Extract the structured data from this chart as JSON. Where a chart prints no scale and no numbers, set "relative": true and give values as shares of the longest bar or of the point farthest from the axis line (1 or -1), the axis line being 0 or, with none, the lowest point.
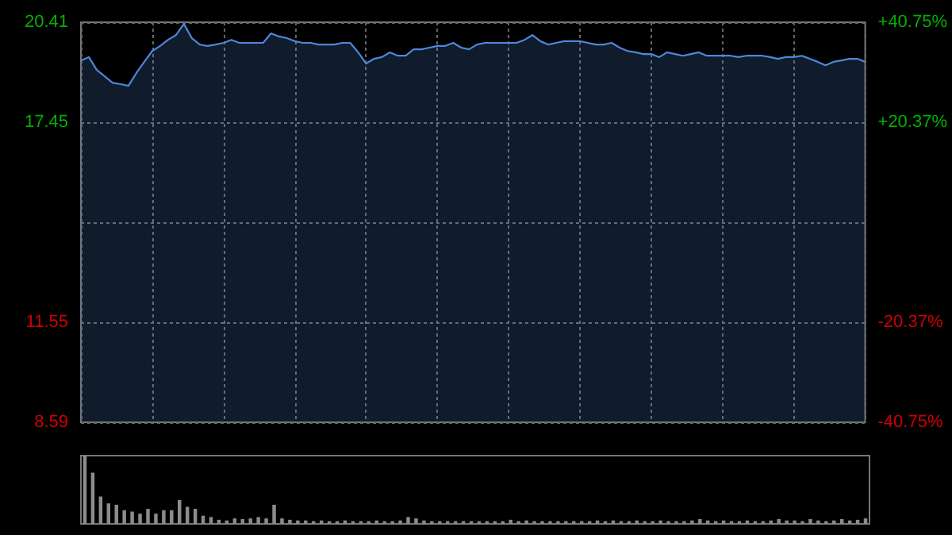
{
  "chart_data": [
    {
      "type": "area",
      "categories": [
        null,
        null,
        null,
        null,
        null,
        null,
        null,
        null,
        null,
        null,
        null,
        null,
        null,
        null,
        null,
        null,
        null,
        null,
        null,
        null,
        null,
        null,
        null,
        null,
        null,
        null,
        null,
        null,
        null,
        null,
        null,
        null,
        null,
        null,
        null,
        null,
        null,
        null,
        null,
        null,
        null,
        null,
        null,
        null,
        null,
        null,
        null,
        null,
        null,
        null,
        null,
        null,
        null,
        null,
        null,
        null,
        null,
        null,
        null,
        null,
        null,
        null,
        null,
        null,
        null,
        null,
        null,
        null,
        null,
        null,
        null,
        null,
        null,
        null,
        null,
        null,
        null,
        null,
        null,
        null,
        null,
        null,
        null,
        null,
        null,
        null,
        null,
        null,
        null,
        null,
        null,
        null,
        null,
        null,
        null,
        null,
        null,
        null,
        null,
        null
      ],
      "series": [
        {
          "color": "#4f86d8",
          "values": [
            19.28,
            19.38,
            19.0,
            18.81,
            18.62,
            18.58,
            18.53,
            18.91,
            19.24,
            19.56,
            19.71,
            19.89,
            20.03,
            20.36,
            19.94,
            19.75,
            19.71,
            19.75,
            19.8,
            19.89,
            19.8,
            19.8,
            19.8,
            19.8,
            20.08,
            19.99,
            19.94,
            19.85,
            19.8,
            19.8,
            19.75,
            19.75,
            19.75,
            19.8,
            19.8,
            19.52,
            19.19,
            19.33,
            19.38,
            19.52,
            19.42,
            19.42,
            19.61,
            19.61,
            19.66,
            19.71,
            19.71,
            19.8,
            19.66,
            19.61,
            19.75,
            19.8,
            19.8,
            19.8,
            19.8,
            19.8,
            19.89,
            20.03,
            19.85,
            19.75,
            19.8,
            19.85,
            19.85,
            19.85,
            19.8,
            19.75,
            19.75,
            19.8,
            19.66,
            19.56,
            19.52,
            19.47,
            19.47,
            19.38,
            19.52,
            19.47,
            19.42,
            19.47,
            19.52,
            19.42,
            19.42,
            19.42,
            19.42,
            19.38,
            19.42,
            19.42,
            19.42,
            19.38,
            19.33,
            19.38,
            19.38,
            19.42,
            19.33,
            19.24,
            19.14,
            19.24,
            19.28,
            19.33,
            19.33,
            19.24
          ]
        }
      ],
      "ylim": [
        8.59,
        20.41
      ],
      "yticks": [
        8.59,
        11.55,
        {
          "value": 14.5,
          "label": null
        },
        17.45,
        20.41
      ],
      "y2lim": [
        -40.75,
        40.75
      ],
      "y2ticks": [
        {
          "value": -40.75,
          "label": "-40.75%"
        },
        {
          "value": -20.37,
          "label": "-20.37%"
        },
        {
          "value": 0,
          "label": null
        },
        {
          "value": 20.37,
          "label": "+20.37%"
        },
        {
          "value": 40.75,
          "label": "+40.75%"
        }
      ],
      "grid": true,
      "tick_labels": "y"
    },
    {
      "type": "bar",
      "relative": true,
      "categories": [
        null,
        null,
        null,
        null,
        null,
        null,
        null,
        null,
        null,
        null,
        null,
        null,
        null,
        null,
        null,
        null,
        null,
        null,
        null,
        null,
        null,
        null,
        null,
        null,
        null,
        null,
        null,
        null,
        null,
        null,
        null,
        null,
        null,
        null,
        null,
        null,
        null,
        null,
        null,
        null,
        null,
        null,
        null,
        null,
        null,
        null,
        null,
        null,
        null,
        null,
        null,
        null,
        null,
        null,
        null,
        null,
        null,
        null,
        null,
        null,
        null,
        null,
        null,
        null,
        null,
        null,
        null,
        null,
        null,
        null,
        null,
        null,
        null,
        null,
        null,
        null,
        null,
        null,
        null,
        null,
        null,
        null,
        null,
        null,
        null,
        null,
        null,
        null,
        null,
        null,
        null,
        null,
        null,
        null,
        null,
        null,
        null,
        null,
        null,
        null
      ],
      "series": [
        {
          "color": "#8c8c8c",
          "values": [
            1.0,
            0.75,
            0.4,
            0.3,
            0.28,
            0.2,
            0.18,
            0.15,
            0.22,
            0.15,
            0.2,
            0.2,
            0.35,
            0.25,
            0.22,
            0.12,
            0.1,
            0.06,
            0.05,
            0.08,
            0.07,
            0.08,
            0.1,
            0.08,
            0.28,
            0.08,
            0.06,
            0.05,
            0.05,
            0.04,
            0.05,
            0.04,
            0.04,
            0.05,
            0.04,
            0.04,
            0.04,
            0.05,
            0.04,
            0.04,
            0.05,
            0.1,
            0.08,
            0.05,
            0.04,
            0.04,
            0.04,
            0.04,
            0.04,
            0.04,
            0.04,
            0.04,
            0.04,
            0.04,
            0.06,
            0.04,
            0.05,
            0.04,
            0.04,
            0.04,
            0.04,
            0.04,
            0.04,
            0.04,
            0.04,
            0.05,
            0.04,
            0.05,
            0.04,
            0.04,
            0.05,
            0.04,
            0.04,
            0.05,
            0.04,
            0.04,
            0.04,
            0.05,
            0.07,
            0.05,
            0.04,
            0.05,
            0.04,
            0.04,
            0.05,
            0.04,
            0.04,
            0.05,
            0.07,
            0.05,
            0.05,
            0.04,
            0.07,
            0.05,
            0.04,
            0.05,
            0.07,
            0.05,
            0.06,
            0.08
          ]
        }
      ],
      "tick_labels": false
    }
  ]
}
